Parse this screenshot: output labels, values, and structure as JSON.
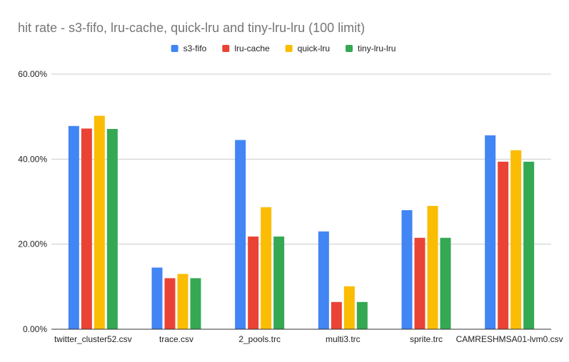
{
  "chart_data": {
    "type": "bar",
    "title": "hit rate - s3-fifo, lru-cache, quick-lru and tiny-lru-lru (100 limit)",
    "xlabel": "",
    "ylabel": "",
    "categories": [
      "twitter_cluster52.csv",
      "trace.csv",
      "2_pools.trc",
      "multi3.trc",
      "sprite.trc",
      "CAMRESHMSA01-lvm0.csv"
    ],
    "series": [
      {
        "name": "s3-fifo",
        "color": "#4285f4",
        "values": [
          47.8,
          14.5,
          44.5,
          23.0,
          28.0,
          45.6
        ]
      },
      {
        "name": "lru-cache",
        "color": "#ea4335",
        "values": [
          47.2,
          12.0,
          21.8,
          6.4,
          21.5,
          39.4
        ]
      },
      {
        "name": "quick-lru",
        "color": "#fbbc04",
        "values": [
          50.2,
          13.0,
          28.7,
          10.1,
          29.0,
          42.1
        ]
      },
      {
        "name": "tiny-lru-lru",
        "color": "#34a853",
        "values": [
          47.1,
          12.0,
          21.8,
          6.4,
          21.5,
          39.4
        ]
      }
    ],
    "ylim": [
      0,
      60
    ],
    "yticks": [
      0,
      20,
      40,
      60
    ],
    "ytick_labels": [
      "0.00%",
      "20.00%",
      "40.00%",
      "60.00%"
    ],
    "grid": true,
    "legend_position": "top-center"
  }
}
